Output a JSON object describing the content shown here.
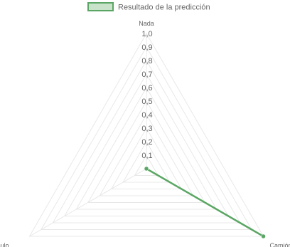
{
  "chart_data": {
    "type": "radar",
    "legend": {
      "position": "top",
      "label": "Resultado de la predicción",
      "color": "#5ba664",
      "fill": "#c8e3ca"
    },
    "axes": [
      "Nada",
      "Camión",
      "Vehículo"
    ],
    "series": [
      {
        "name": "Resultado de la predicción",
        "values": [
          0,
          1.0,
          0
        ]
      }
    ],
    "rlim": [
      0,
      1.0
    ],
    "ticks": [
      "0,1",
      "0,2",
      "0,3",
      "0,4",
      "0,5",
      "0,6",
      "0,7",
      "0,8",
      "0,9",
      "1,0"
    ],
    "grid": true,
    "grid_color": "#e8e8e8"
  }
}
